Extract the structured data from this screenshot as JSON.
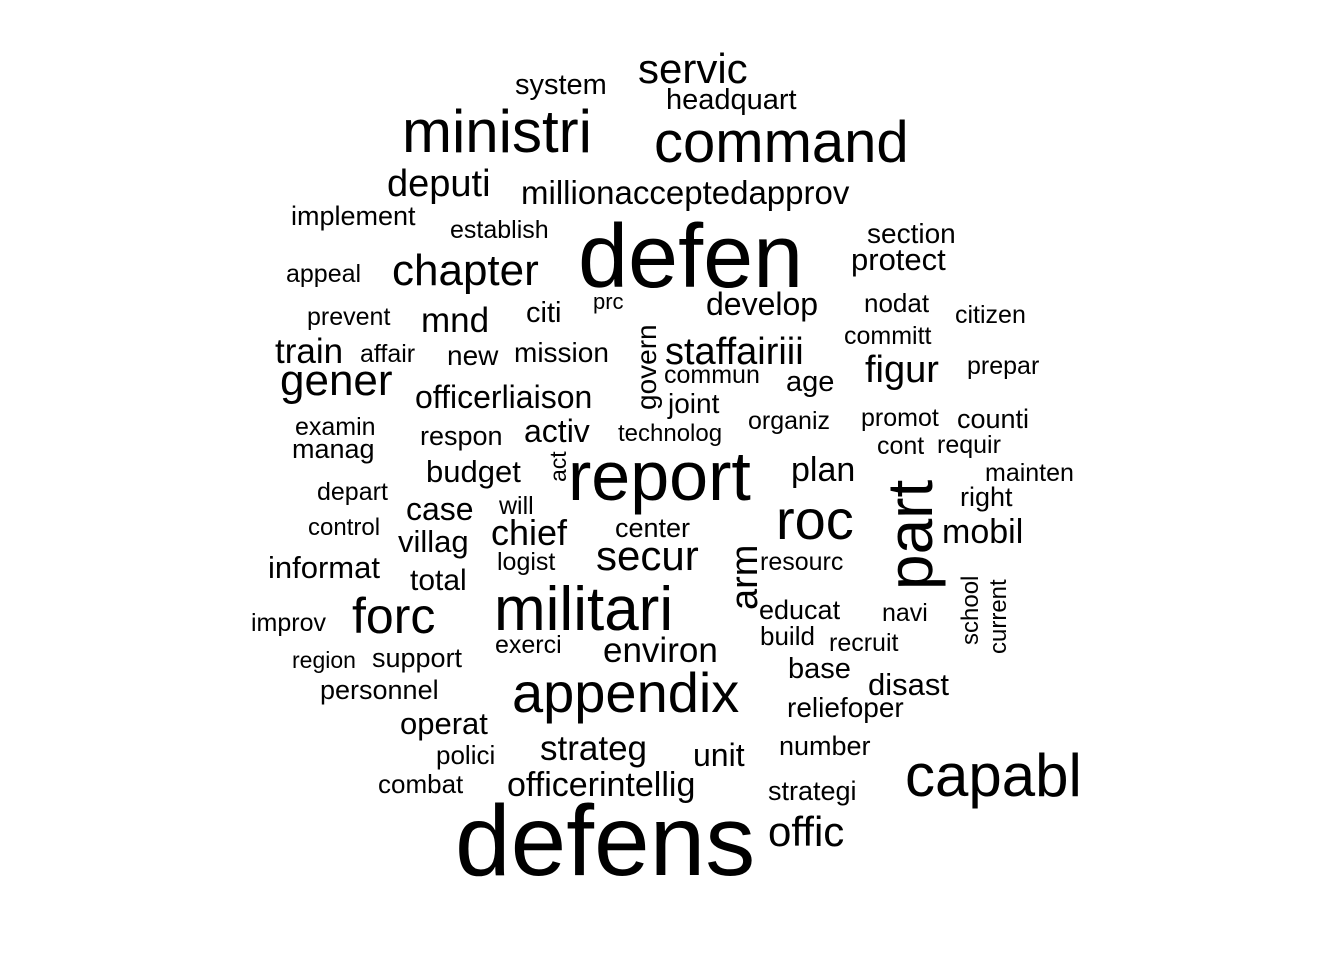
{
  "words": [
    {
      "text": "defens",
      "weight": 100
    },
    {
      "text": "defen",
      "weight": 97
    },
    {
      "text": "report",
      "weight": 78
    },
    {
      "text": "part",
      "weight": 72
    },
    {
      "text": "militari",
      "weight": 70
    },
    {
      "text": "capabl",
      "weight": 66
    },
    {
      "text": "appendix",
      "weight": 63
    },
    {
      "text": "ministri",
      "weight": 62
    },
    {
      "text": "command",
      "weight": 60
    },
    {
      "text": "roc",
      "weight": 60
    },
    {
      "text": "forc",
      "weight": 52
    },
    {
      "text": "chapter",
      "weight": 46
    },
    {
      "text": "gener",
      "weight": 46
    },
    {
      "text": "servic",
      "weight": 44
    },
    {
      "text": "secur",
      "weight": 44
    },
    {
      "text": "offic",
      "weight": 44
    },
    {
      "text": "deputi",
      "weight": 40
    },
    {
      "text": "arm",
      "weight": 40
    },
    {
      "text": "staffairiii",
      "weight": 40
    },
    {
      "text": "figur",
      "weight": 40
    },
    {
      "text": "chief",
      "weight": 38
    },
    {
      "text": "strateg",
      "weight": 37
    },
    {
      "text": "environ",
      "weight": 37
    },
    {
      "text": "mobil",
      "weight": 36
    },
    {
      "text": "millionacceptedapprov",
      "weight": 35
    },
    {
      "text": "mnd",
      "weight": 35
    },
    {
      "text": "train",
      "weight": 35
    },
    {
      "text": "develop",
      "weight": 33
    },
    {
      "text": "plan",
      "weight": 35
    },
    {
      "text": "officerliaison",
      "weight": 33
    },
    {
      "text": "officerintellig",
      "weight": 35
    },
    {
      "text": "activ",
      "weight": 34
    },
    {
      "text": "budget",
      "weight": 32
    },
    {
      "text": "case",
      "weight": 33
    },
    {
      "text": "unit",
      "weight": 33
    },
    {
      "text": "protect",
      "weight": 32
    },
    {
      "text": "informat",
      "weight": 32
    },
    {
      "text": "disast",
      "weight": 32
    },
    {
      "text": "operat",
      "weight": 32
    },
    {
      "text": "villag",
      "weight": 32
    },
    {
      "text": "total",
      "weight": 31
    },
    {
      "text": "govern",
      "weight": 29
    },
    {
      "text": "citi",
      "weight": 30
    },
    {
      "text": "new",
      "weight": 29
    },
    {
      "text": "mission",
      "weight": 29
    },
    {
      "text": "age",
      "weight": 30
    },
    {
      "text": "joint",
      "weight": 29
    },
    {
      "text": "system",
      "weight": 30
    },
    {
      "text": "headquart",
      "weight": 30
    },
    {
      "text": "section",
      "weight": 29
    },
    {
      "text": "base",
      "weight": 30
    },
    {
      "text": "reliefoper",
      "weight": 29
    },
    {
      "text": "educat",
      "weight": 28
    },
    {
      "text": "implement",
      "weight": 28
    },
    {
      "text": "personnel",
      "weight": 28
    },
    {
      "text": "number",
      "weight": 28
    },
    {
      "text": "respon",
      "weight": 28
    },
    {
      "text": "support",
      "weight": 28
    },
    {
      "text": "center",
      "weight": 28
    },
    {
      "text": "right",
      "weight": 28
    },
    {
      "text": "counti",
      "weight": 28
    },
    {
      "text": "strategi",
      "weight": 28
    },
    {
      "text": "manag",
      "weight": 28
    },
    {
      "text": "nodat",
      "weight": 27
    },
    {
      "text": "build",
      "weight": 27
    },
    {
      "text": "establish",
      "weight": 26
    },
    {
      "text": "appeal",
      "weight": 26
    },
    {
      "text": "depart",
      "weight": 26
    },
    {
      "text": "prevent",
      "weight": 26
    },
    {
      "text": "affair",
      "weight": 26
    },
    {
      "text": "organiz",
      "weight": 26
    },
    {
      "text": "technolog",
      "weight": 25
    },
    {
      "text": "commun",
      "weight": 26
    },
    {
      "text": "committ",
      "weight": 26
    },
    {
      "text": "citizen",
      "weight": 26
    },
    {
      "text": "prepar",
      "weight": 26
    },
    {
      "text": "examin",
      "weight": 26
    },
    {
      "text": "promot",
      "weight": 26
    },
    {
      "text": "cont",
      "weight": 26
    },
    {
      "text": "requir",
      "weight": 26
    },
    {
      "text": "mainten",
      "weight": 26
    },
    {
      "text": "control",
      "weight": 25
    },
    {
      "text": "will",
      "weight": 26
    },
    {
      "text": "act",
      "weight": 24
    },
    {
      "text": "logist",
      "weight": 26
    },
    {
      "text": "resourc",
      "weight": 26
    },
    {
      "text": "improv",
      "weight": 26
    },
    {
      "text": "exerci",
      "weight": 26
    },
    {
      "text": "navi",
      "weight": 26
    },
    {
      "text": "recruit",
      "weight": 26
    },
    {
      "text": "region",
      "weight": 24
    },
    {
      "text": "polici",
      "weight": 27
    },
    {
      "text": "combat",
      "weight": 27
    },
    {
      "text": "prc",
      "weight": 23
    },
    {
      "text": "school",
      "weight": 25
    },
    {
      "text": "current",
      "weight": 25
    }
  ]
}
